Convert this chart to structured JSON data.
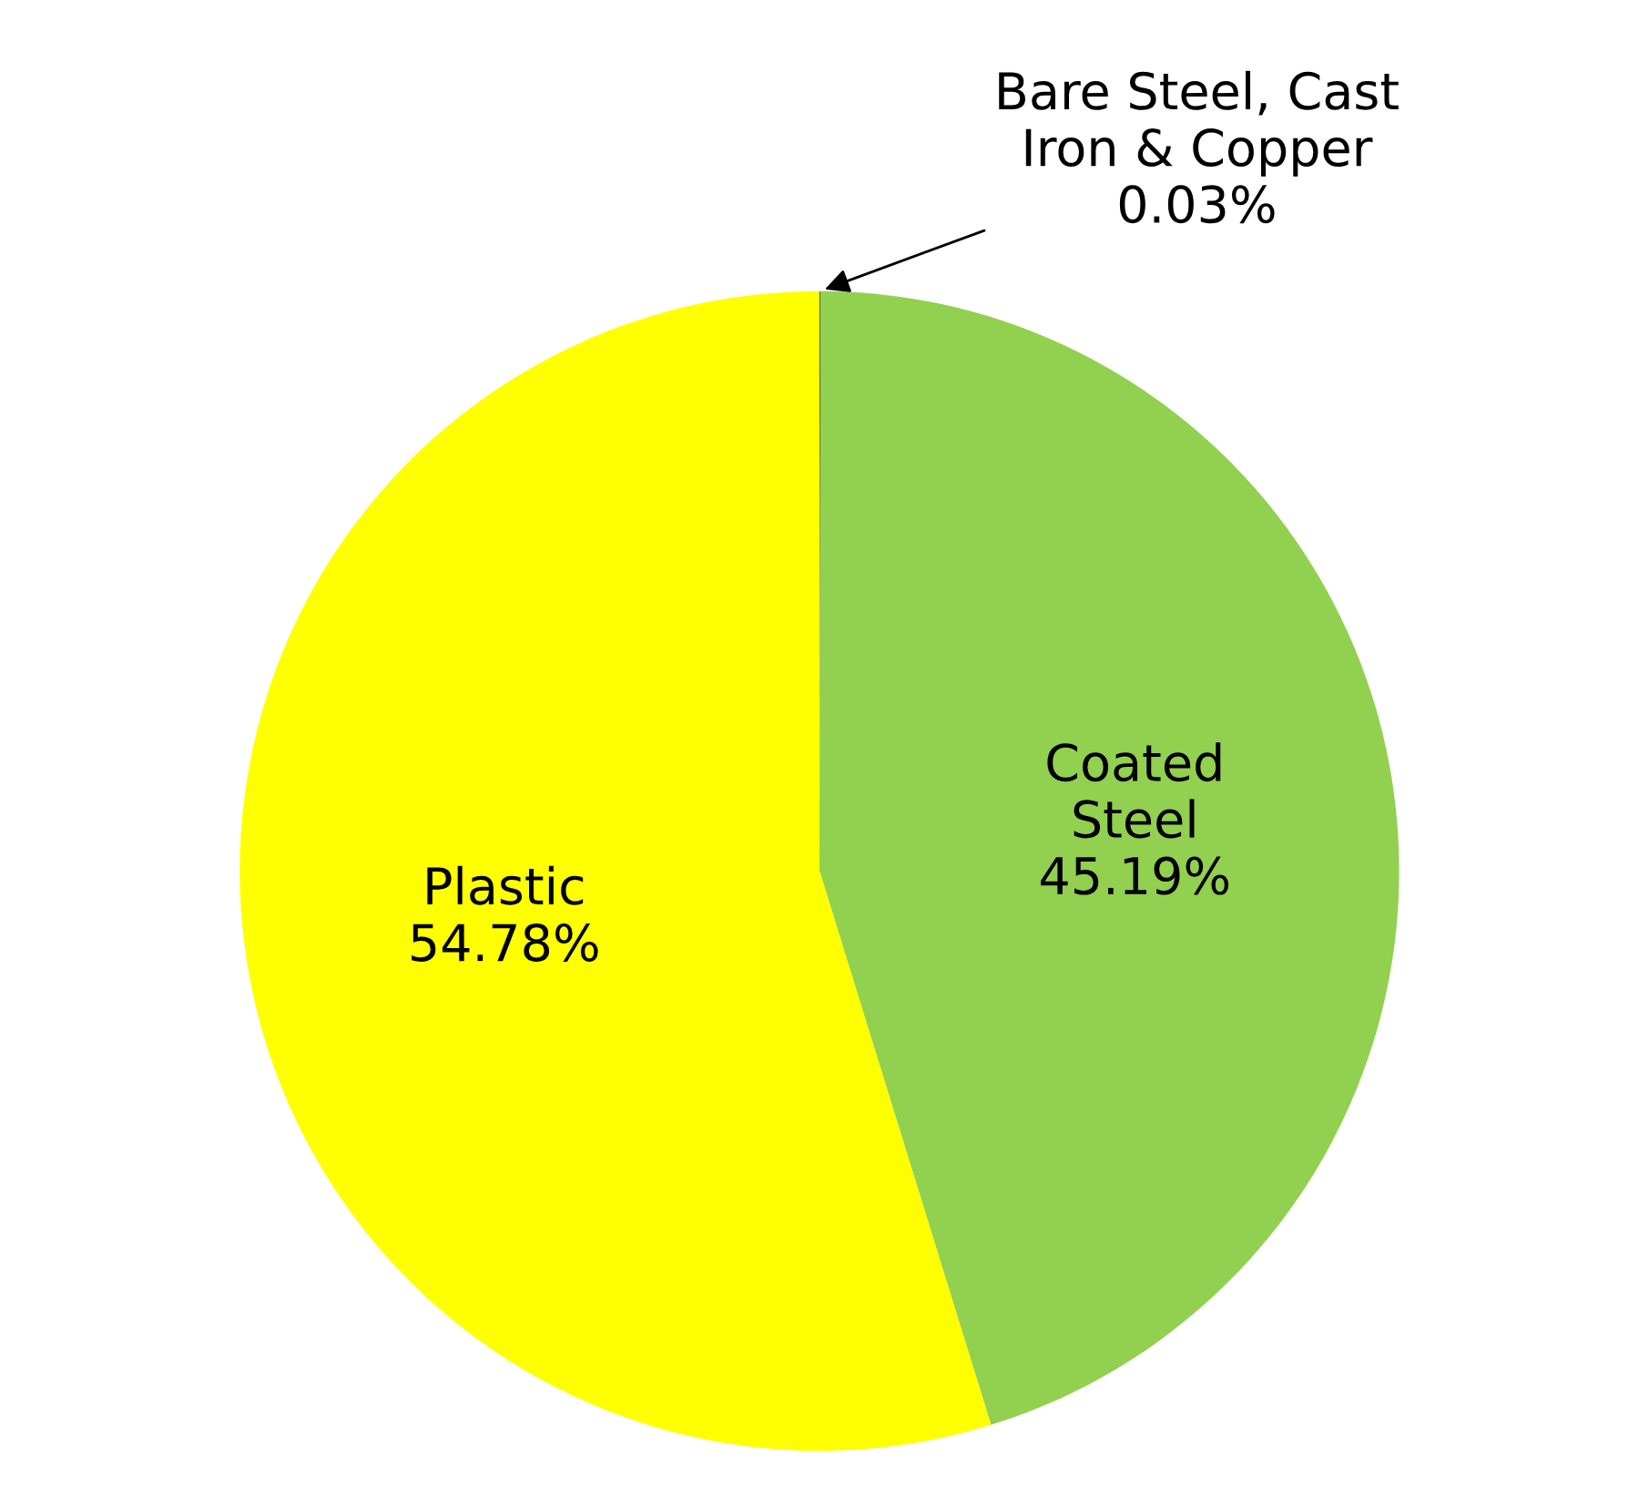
{
  "chart_data": {
    "type": "pie",
    "categories": [
      "Bare Steel, Cast\nIron & Copper",
      "Coated\nSteel",
      "Plastic"
    ],
    "values": [
      0.03,
      45.19,
      54.78
    ],
    "colors": [
      "#4f6228",
      "#92d050",
      "#ffff00"
    ],
    "value_labels": [
      "0.03%",
      "45.19%",
      "54.78%"
    ]
  }
}
